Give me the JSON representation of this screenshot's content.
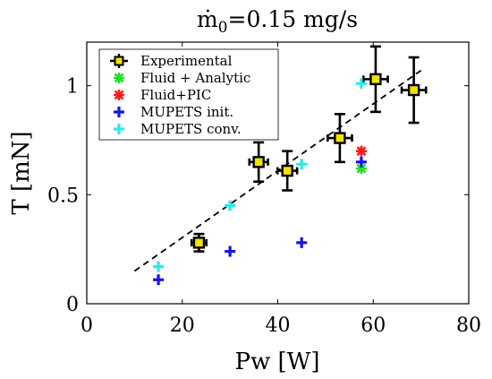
{
  "chart_data": {
    "type": "scatter",
    "title_main": "ṁ",
    "title_sub": "0",
    "title_rest": "=0.15 mg/s",
    "xlabel": "Pw [W]",
    "ylabel": "T [mN]",
    "xlim": [
      0,
      80
    ],
    "ylim": [
      0,
      1.2
    ],
    "xticks": [
      0,
      20,
      40,
      60,
      80
    ],
    "xtick_labels": [
      "0",
      "20",
      "40",
      "60",
      "80"
    ],
    "yticks": [
      0,
      0.5,
      1
    ],
    "ytick_labels": [
      "0",
      "0.5",
      "1"
    ],
    "grid": false,
    "legend_position": "top-left",
    "series": [
      {
        "name": "Experimental",
        "marker": "square",
        "color": "#000000",
        "fill": "#f2e200",
        "x": [
          23.5,
          36,
          42,
          53,
          60.5,
          68.5
        ],
        "y": [
          0.28,
          0.65,
          0.61,
          0.76,
          1.03,
          0.98
        ],
        "yerr": [
          0.04,
          0.09,
          0.09,
          0.11,
          0.15,
          0.15
        ],
        "xerr": [
          0.8,
          1.2,
          1.3,
          1.8,
          1.8,
          1.8
        ]
      },
      {
        "name": "Fluid + Analytic",
        "marker": "asterisk",
        "color": "#22dd22",
        "x": [
          57.5
        ],
        "y": [
          0.62
        ]
      },
      {
        "name": "Fluid+PIC",
        "marker": "asterisk",
        "color": "#ff1a1a",
        "x": [
          57.5
        ],
        "y": [
          0.7
        ]
      },
      {
        "name": "MUPETS init.",
        "marker": "plus",
        "color": "#1414e6",
        "x": [
          15,
          30,
          45,
          57.5
        ],
        "y": [
          0.11,
          0.24,
          0.28,
          0.65
        ]
      },
      {
        "name": "MUPETS conv.",
        "marker": "plus",
        "color": "#2ee6ee",
        "x": [
          15,
          30,
          45,
          57.5
        ],
        "y": [
          0.17,
          0.45,
          0.64,
          1.01
        ]
      }
    ],
    "fit_line": {
      "style": "dashed",
      "color": "#000000",
      "x": [
        10,
        70
      ],
      "y": [
        0.15,
        1.07
      ]
    }
  }
}
